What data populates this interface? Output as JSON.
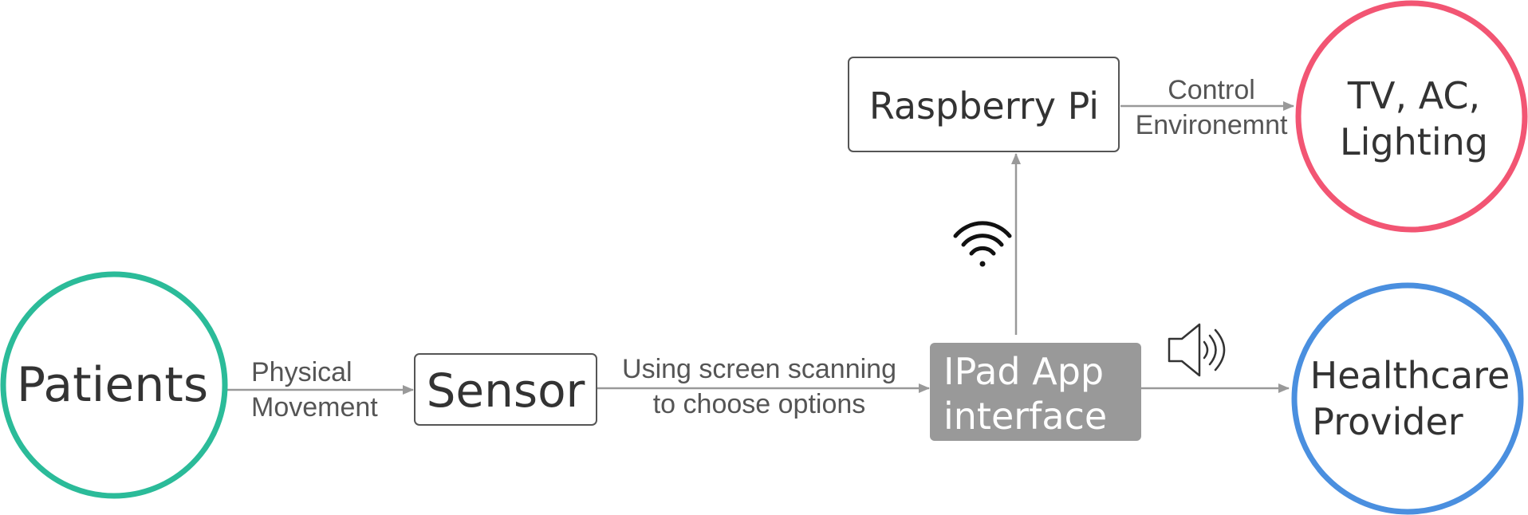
{
  "nodes": {
    "patients": {
      "label": "Patients",
      "border_color": "#2bbb99"
    },
    "sensor": {
      "label": "Sensor"
    },
    "ipad_app": {
      "line1": "IPad App",
      "line2": "interface",
      "fill_color": "#999999"
    },
    "raspberry_pi": {
      "label": "Raspberry Pi"
    },
    "environment_devices": {
      "line1": "TV, AC,",
      "line2": "Lighting",
      "border_color": "#f25573"
    },
    "healthcare_provider": {
      "line1": "Healthcare",
      "line2": "Provider",
      "border_color": "#4a8fdf"
    }
  },
  "edges": {
    "patients_to_sensor": {
      "line1": "Physical",
      "line2": "Movement"
    },
    "sensor_to_ipad": {
      "line1": "Using screen scanning",
      "line2": "to choose options"
    },
    "raspberry_to_environment": {
      "line1": "Control",
      "line2": "Environemnt"
    }
  },
  "icons": {
    "wifi": "wifi-icon",
    "speaker": "speaker-icon"
  },
  "colors": {
    "edge_color": "#999999",
    "text_color": "#333333"
  }
}
